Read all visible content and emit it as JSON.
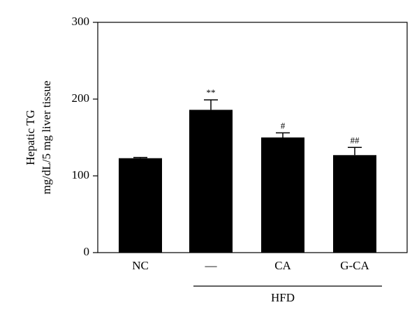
{
  "chart_data": {
    "type": "bar",
    "y_label_lines": [
      "Hepatic TG",
      "mg/dL/5 mg liver tissue"
    ],
    "categories": [
      "NC",
      "—",
      "CA",
      "G-CA"
    ],
    "values": [
      123,
      186,
      150,
      127
    ],
    "errors": [
      1,
      13,
      6,
      10
    ],
    "annotations": [
      null,
      "**",
      "#",
      "##"
    ],
    "group_label": "HFD",
    "color": "#000000",
    "ylim": [
      0,
      300
    ],
    "yticks": [
      0,
      100,
      200,
      300
    ]
  }
}
